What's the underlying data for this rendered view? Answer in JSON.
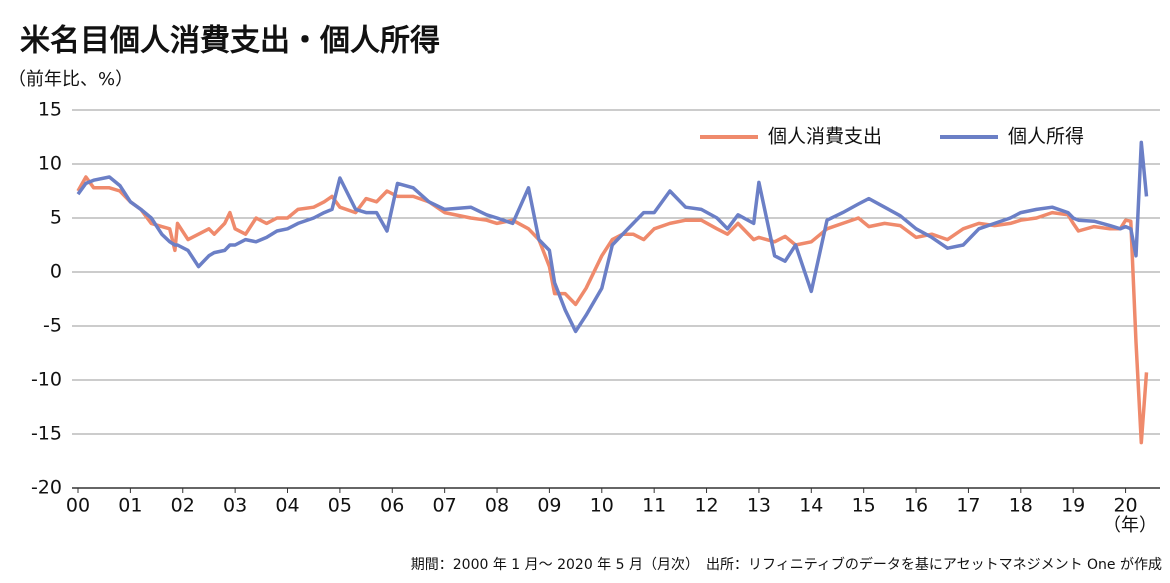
{
  "chart_data": {
    "type": "line",
    "title": "米名目個人消費支出・個人所得",
    "y_label": "（前年比、%）",
    "x_label": "（年）",
    "footnote": "期間：2000 年 1 月～ 2020 年 5 月（月次）　出所：リフィニティブのデータを基にアセットマネジメント One が作成",
    "x": [
      2000.0,
      2000.15,
      2000.3,
      2000.6,
      2000.8,
      2001.0,
      2001.2,
      2001.4,
      2001.6,
      2001.75,
      2001.85,
      2001.9,
      2002.1,
      2002.3,
      2002.5,
      2002.6,
      2002.8,
      2002.9,
      2003.0,
      2003.2,
      2003.4,
      2003.6,
      2003.8,
      2004.0,
      2004.2,
      2004.5,
      2004.7,
      2004.85,
      2005.0,
      2005.3,
      2005.5,
      2005.7,
      2005.9,
      2006.1,
      2006.4,
      2006.7,
      2007.0,
      2007.5,
      2007.8,
      2008.0,
      2008.3,
      2008.6,
      2008.8,
      2009.0,
      2009.1,
      2009.3,
      2009.5,
      2009.7,
      2010.0,
      2010.2,
      2010.4,
      2010.6,
      2010.8,
      2011.0,
      2011.3,
      2011.6,
      2011.9,
      2012.2,
      2012.4,
      2012.6,
      2012.9,
      2013.0,
      2013.3,
      2013.5,
      2013.7,
      2014.0,
      2014.3,
      2014.6,
      2014.9,
      2015.1,
      2015.4,
      2015.7,
      2016.0,
      2016.3,
      2016.6,
      2016.9,
      2017.2,
      2017.5,
      2017.8,
      2018.0,
      2018.3,
      2018.6,
      2018.9,
      2019.0,
      2019.1,
      2019.4,
      2019.7,
      2019.9,
      2020.0,
      2020.1,
      2020.2,
      2020.3,
      2020.4
    ],
    "series": [
      {
        "name": "個人消費支出",
        "color": "#ef8a6c",
        "values": [
          7.5,
          8.8,
          7.8,
          7.8,
          7.5,
          6.5,
          5.8,
          4.5,
          4.2,
          4.0,
          2.0,
          4.5,
          3.0,
          3.5,
          4.0,
          3.5,
          4.5,
          5.5,
          4.0,
          3.5,
          5.0,
          4.5,
          5.0,
          5.0,
          5.8,
          6.0,
          6.5,
          7.0,
          6.0,
          5.5,
          6.8,
          6.5,
          7.5,
          7.0,
          7.0,
          6.5,
          5.5,
          5.0,
          4.8,
          4.5,
          4.8,
          4.0,
          3.0,
          0.5,
          -2.0,
          -2.0,
          -3.0,
          -1.5,
          1.5,
          3.0,
          3.5,
          3.5,
          3.0,
          4.0,
          4.5,
          4.8,
          4.8,
          4.0,
          3.5,
          4.5,
          3.0,
          3.2,
          2.8,
          3.3,
          2.5,
          2.8,
          4.0,
          4.5,
          5.0,
          4.2,
          4.5,
          4.3,
          3.2,
          3.5,
          3.0,
          4.0,
          4.5,
          4.3,
          4.5,
          4.8,
          5.0,
          5.5,
          5.3,
          4.5,
          3.8,
          4.2,
          4.0,
          4.0,
          4.8,
          4.7,
          -6.5,
          -15.8,
          -9.3
        ]
      },
      {
        "name": "個人所得",
        "color": "#6b7fc6",
        "values": [
          7.2,
          8.2,
          8.5,
          8.8,
          8.0,
          6.5,
          5.8,
          5.0,
          3.5,
          2.8,
          2.5,
          2.5,
          2.0,
          0.5,
          1.5,
          1.8,
          2.0,
          2.5,
          2.5,
          3.0,
          2.8,
          3.2,
          3.8,
          4.0,
          4.5,
          5.0,
          5.5,
          5.8,
          8.7,
          5.8,
          5.5,
          5.5,
          3.8,
          8.2,
          7.8,
          6.5,
          5.8,
          6.0,
          5.3,
          5.0,
          4.5,
          7.8,
          3.0,
          2.0,
          -1.0,
          -3.5,
          -5.5,
          -4.0,
          -1.5,
          2.5,
          3.5,
          4.5,
          5.5,
          5.5,
          7.5,
          6.0,
          5.8,
          5.0,
          4.0,
          5.3,
          4.5,
          8.3,
          1.5,
          1.0,
          2.5,
          -1.8,
          4.8,
          5.5,
          6.3,
          6.8,
          6.0,
          5.2,
          4.0,
          3.2,
          2.2,
          2.5,
          4.0,
          4.5,
          5.0,
          5.5,
          5.8,
          6.0,
          5.5,
          5.0,
          4.8,
          4.7,
          4.3,
          4.0,
          4.2,
          4.0,
          1.5,
          12.0,
          7.0
        ]
      }
    ],
    "xlim": [
      2000,
      2020.6
    ],
    "xticks": [
      {
        "value": 2000,
        "label": "00"
      },
      {
        "value": 2001,
        "label": "01"
      },
      {
        "value": 2002,
        "label": "02"
      },
      {
        "value": 2003,
        "label": "03"
      },
      {
        "value": 2004,
        "label": "04"
      },
      {
        "value": 2005,
        "label": "05"
      },
      {
        "value": 2006,
        "label": "06"
      },
      {
        "value": 2007,
        "label": "07"
      },
      {
        "value": 2008,
        "label": "08"
      },
      {
        "value": 2009,
        "label": "09"
      },
      {
        "value": 2010,
        "label": "10"
      },
      {
        "value": 2011,
        "label": "11"
      },
      {
        "value": 2012,
        "label": "12"
      },
      {
        "value": 2013,
        "label": "13"
      },
      {
        "value": 2014,
        "label": "14"
      },
      {
        "value": 2015,
        "label": "15"
      },
      {
        "value": 2016,
        "label": "16"
      },
      {
        "value": 2017,
        "label": "17"
      },
      {
        "value": 2018,
        "label": "18"
      },
      {
        "value": 2019,
        "label": "19"
      },
      {
        "value": 2020,
        "label": "20"
      }
    ],
    "ylim": [
      -20,
      15
    ],
    "yticks": [
      15,
      10,
      5,
      0,
      -5,
      -10,
      -15,
      -20
    ],
    "grid": true,
    "legend": "top-right"
  }
}
